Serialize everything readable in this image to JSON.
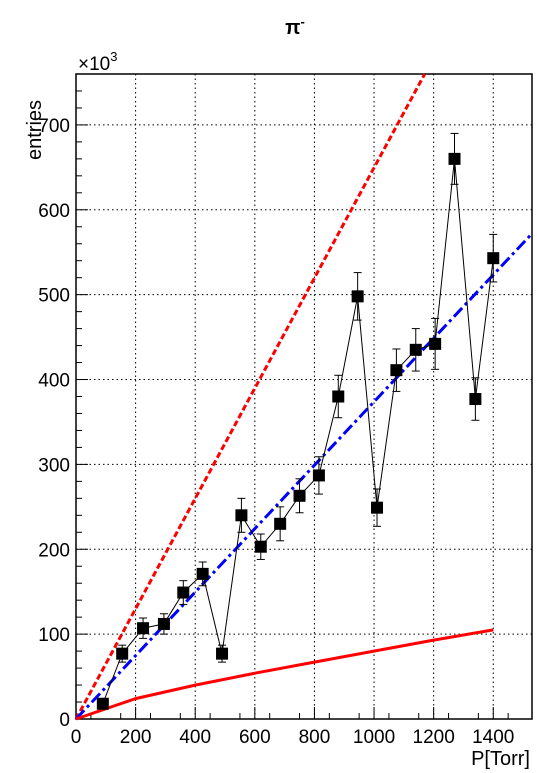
{
  "chart_data": {
    "type": "scatter",
    "title": "π",
    "title_superscript": "-",
    "xlabel": "P[Torr]",
    "ylabel": "entries",
    "y_multiplier": "×10",
    "y_multiplier_exp": "3",
    "xlim": [
      0,
      1530
    ],
    "ylim": [
      0,
      760
    ],
    "grid": true,
    "x_ticks": [
      0,
      200,
      400,
      600,
      800,
      1000,
      1200,
      1400
    ],
    "x_tick_labels": [
      "0",
      "200",
      "400",
      "600",
      "800",
      "1000",
      "1200",
      "1400"
    ],
    "y_ticks": [
      0,
      100,
      200,
      300,
      400,
      500,
      600,
      700
    ],
    "y_tick_labels": [
      "0",
      "100",
      "200",
      "300",
      "400",
      "500",
      "600",
      "700"
    ],
    "series": [
      {
        "kind": "markers",
        "color": "#000000",
        "x": [
          90,
          155,
          225,
          295,
          360,
          425,
          490,
          555,
          620,
          685,
          750,
          815,
          880,
          945,
          1010,
          1075,
          1140,
          1205,
          1270,
          1340,
          1400
        ],
        "y": [
          18,
          77,
          107,
          112,
          149,
          171,
          77,
          240,
          203,
          230,
          263,
          287,
          380,
          498,
          249,
          411,
          435,
          442,
          660,
          377,
          543
        ],
        "err": [
          5,
          10,
          12,
          12,
          14,
          14,
          10,
          20,
          15,
          20,
          20,
          22,
          25,
          28,
          22,
          25,
          25,
          30,
          30,
          25,
          28
        ]
      },
      {
        "kind": "line",
        "style": "dashed",
        "color": "#ff0000",
        "x": [
          0,
          1170
        ],
        "y": [
          0,
          760
        ]
      },
      {
        "kind": "line",
        "style": "dash-dot",
        "color": "#0000ff",
        "x": [
          0,
          1530
        ],
        "y": [
          0,
          572
        ]
      },
      {
        "kind": "line",
        "style": "solid",
        "color": "#ff0000",
        "x": [
          0,
          200,
          400,
          600,
          800,
          1000,
          1200,
          1400
        ],
        "y": [
          0,
          24,
          40,
          54,
          67,
          80,
          93,
          105
        ]
      }
    ]
  }
}
